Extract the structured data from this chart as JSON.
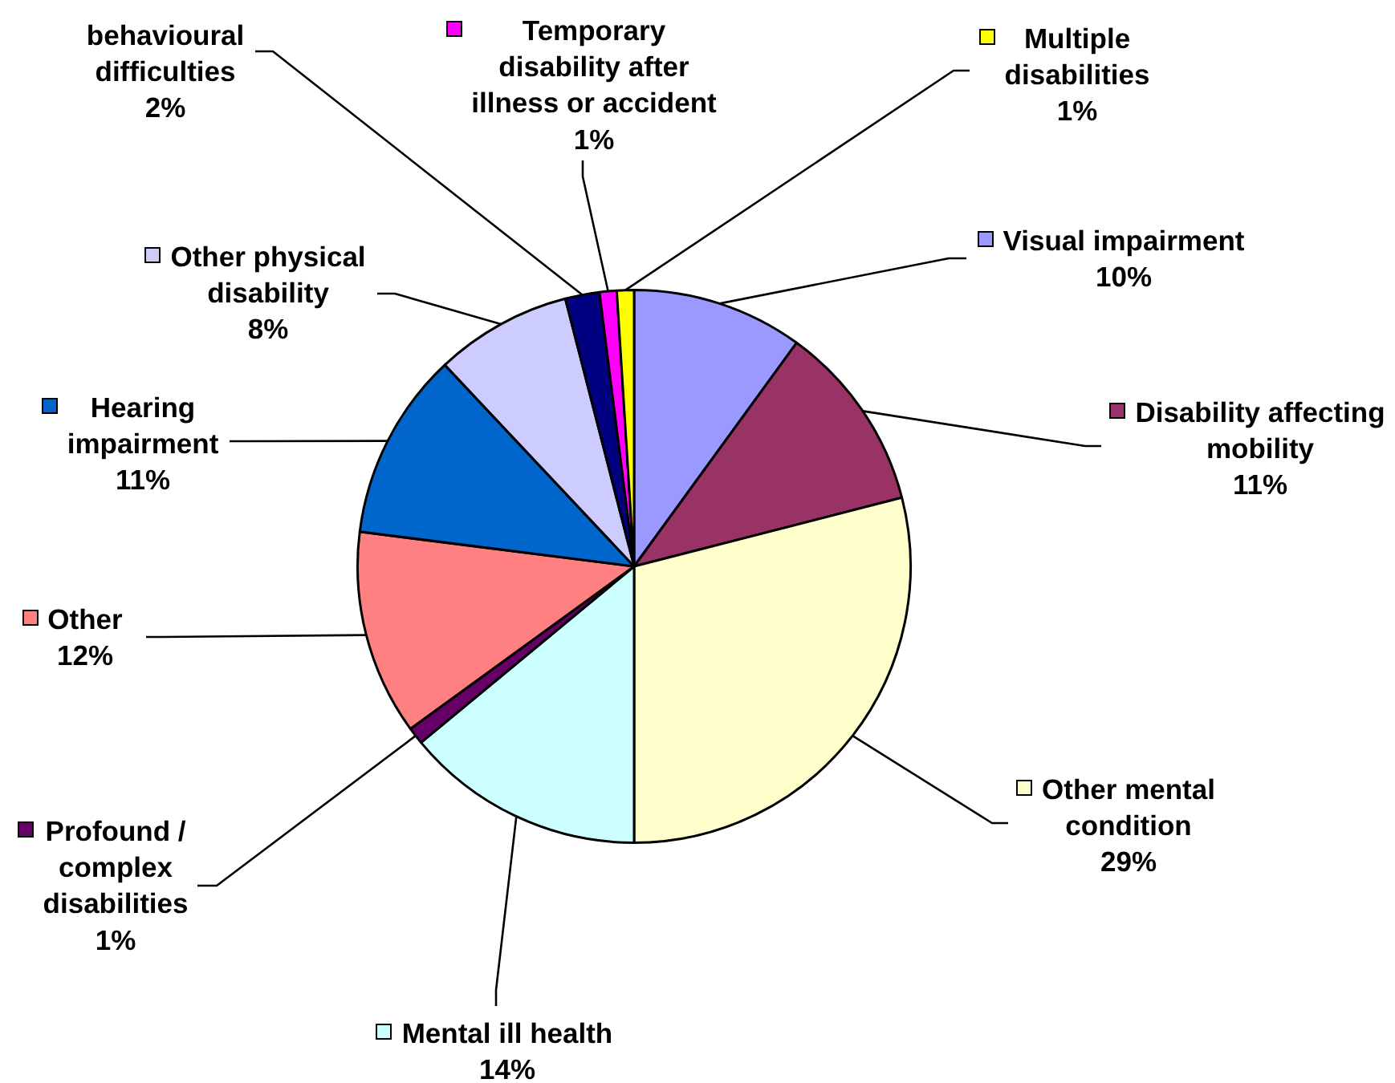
{
  "chart_data": {
    "type": "pie",
    "categories": [
      "Visual impairment",
      "Disability affecting mobility",
      "Other mental condition",
      "Mental ill health",
      "Profound / complex disabilities",
      "Other",
      "Hearing impairment",
      "Other physical disability",
      "behavioural difficulties",
      "Temporary disability after illness or accident",
      "Multiple disabilities"
    ],
    "values": [
      10,
      11,
      29,
      14,
      1,
      12,
      11,
      8,
      2,
      1,
      1
    ],
    "colors": [
      "#9999ff",
      "#993366",
      "#ffffcc",
      "#ccffff",
      "#660066",
      "#ff8080",
      "#0066cc",
      "#ccccff",
      "#000080",
      "#ff00ff",
      "#ffff00"
    ],
    "value_labels": [
      "10%",
      "11%",
      "29%",
      "14%",
      "1%",
      "12%",
      "11%",
      "8%",
      "2%",
      "1%",
      "1%"
    ],
    "legend": "top right"
  }
}
